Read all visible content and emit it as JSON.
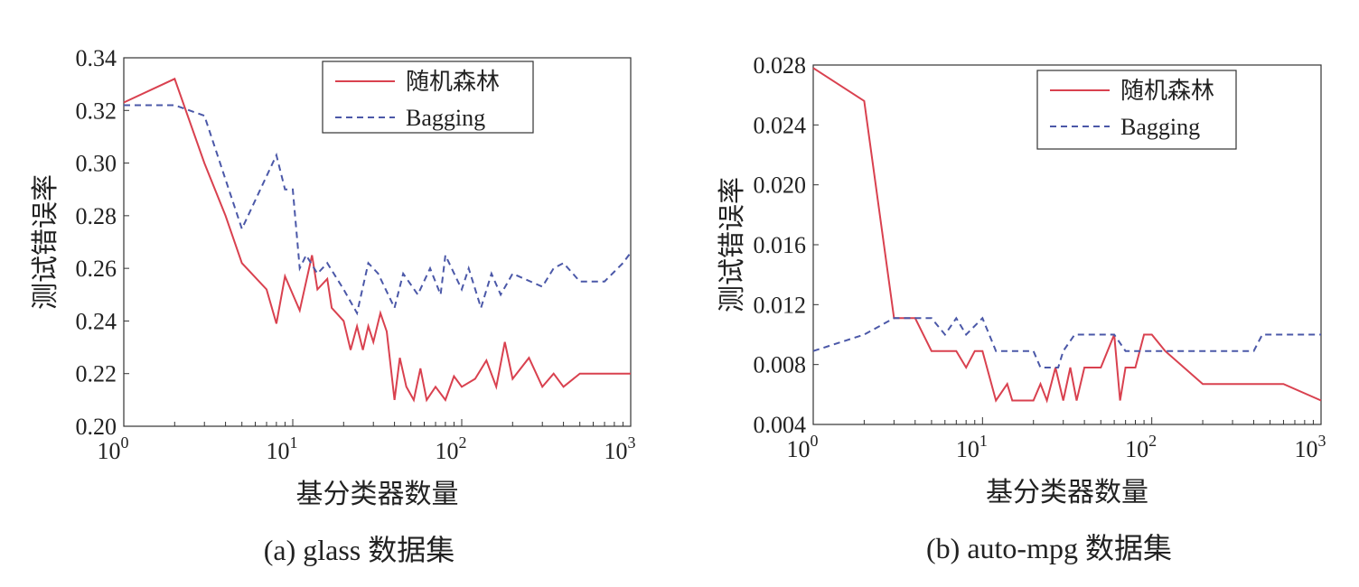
{
  "chart_data": [
    {
      "type": "line",
      "title": "",
      "caption": "(a) glass 数据集",
      "xlabel": "基分类器数量",
      "ylabel": "测试错误率",
      "xscale": "log",
      "xlim": [
        1,
        1000
      ],
      "ylim": [
        0.2,
        0.34
      ],
      "xticks": [
        "10",
        "10",
        "10",
        "10"
      ],
      "xtick_exp": [
        "0",
        "1",
        "2",
        "3"
      ],
      "yticks": [
        "0.20",
        "0.22",
        "0.24",
        "0.26",
        "0.28",
        "0.30",
        "0.32",
        "0.34"
      ],
      "legend_position": "top-right",
      "series": [
        {
          "name": "随机森林",
          "color": "#d9414f",
          "style": "solid",
          "points": [
            [
              1,
              0.323
            ],
            [
              2,
              0.332
            ],
            [
              3,
              0.3
            ],
            [
              4,
              0.28
            ],
            [
              5,
              0.262
            ],
            [
              7,
              0.252
            ],
            [
              8,
              0.239
            ],
            [
              9,
              0.257
            ],
            [
              11,
              0.244
            ],
            [
              13,
              0.265
            ],
            [
              14,
              0.252
            ],
            [
              16,
              0.256
            ],
            [
              17,
              0.245
            ],
            [
              20,
              0.24
            ],
            [
              22,
              0.229
            ],
            [
              24,
              0.238
            ],
            [
              26,
              0.229
            ],
            [
              28,
              0.238
            ],
            [
              30,
              0.232
            ],
            [
              33,
              0.243
            ],
            [
              36,
              0.236
            ],
            [
              40,
              0.21
            ],
            [
              43,
              0.226
            ],
            [
              47,
              0.215
            ],
            [
              52,
              0.21
            ],
            [
              57,
              0.222
            ],
            [
              62,
              0.21
            ],
            [
              70,
              0.215
            ],
            [
              80,
              0.21
            ],
            [
              90,
              0.219
            ],
            [
              100,
              0.215
            ],
            [
              120,
              0.218
            ],
            [
              140,
              0.225
            ],
            [
              160,
              0.215
            ],
            [
              180,
              0.232
            ],
            [
              200,
              0.218
            ],
            [
              250,
              0.226
            ],
            [
              300,
              0.215
            ],
            [
              350,
              0.22
            ],
            [
              400,
              0.215
            ],
            [
              500,
              0.22
            ],
            [
              600,
              0.22
            ],
            [
              1000,
              0.22
            ]
          ]
        },
        {
          "name": "Bagging",
          "color": "#4b58a8",
          "style": "dashed",
          "points": [
            [
              1,
              0.322
            ],
            [
              2,
              0.322
            ],
            [
              3,
              0.318
            ],
            [
              5,
              0.275
            ],
            [
              8,
              0.303
            ],
            [
              9,
              0.29
            ],
            [
              10,
              0.29
            ],
            [
              11,
              0.26
            ],
            [
              12,
              0.265
            ],
            [
              14,
              0.258
            ],
            [
              16,
              0.262
            ],
            [
              20,
              0.252
            ],
            [
              24,
              0.243
            ],
            [
              28,
              0.262
            ],
            [
              32,
              0.258
            ],
            [
              40,
              0.245
            ],
            [
              45,
              0.258
            ],
            [
              55,
              0.25
            ],
            [
              65,
              0.26
            ],
            [
              75,
              0.25
            ],
            [
              80,
              0.265
            ],
            [
              100,
              0.252
            ],
            [
              110,
              0.26
            ],
            [
              130,
              0.245
            ],
            [
              150,
              0.258
            ],
            [
              170,
              0.25
            ],
            [
              200,
              0.258
            ],
            [
              300,
              0.253
            ],
            [
              350,
              0.26
            ],
            [
              400,
              0.262
            ],
            [
              500,
              0.255
            ],
            [
              700,
              0.255
            ],
            [
              900,
              0.262
            ],
            [
              1000,
              0.266
            ]
          ]
        }
      ]
    },
    {
      "type": "line",
      "title": "",
      "caption": "(b) auto-mpg 数据集",
      "xlabel": "基分类器数量",
      "ylabel": "测试错误率",
      "xscale": "log",
      "xlim": [
        1,
        1000
      ],
      "ylim": [
        0.004,
        0.028
      ],
      "xticks": [
        "10",
        "10",
        "10",
        "10"
      ],
      "xtick_exp": [
        "0",
        "1",
        "2",
        "3"
      ],
      "yticks": [
        "0.004",
        "0.008",
        "0.012",
        "0.016",
        "0.020",
        "0.024",
        "0.028"
      ],
      "legend_position": "top-right",
      "series": [
        {
          "name": "随机森林",
          "color": "#d9414f",
          "style": "solid",
          "points": [
            [
              1,
              0.0278
            ],
            [
              2,
              0.0256
            ],
            [
              3,
              0.0111
            ],
            [
              4,
              0.0111
            ],
            [
              5,
              0.0089
            ],
            [
              7,
              0.0089
            ],
            [
              8,
              0.0078
            ],
            [
              9,
              0.0089
            ],
            [
              10,
              0.0089
            ],
            [
              12,
              0.0056
            ],
            [
              14,
              0.0067
            ],
            [
              15,
              0.0056
            ],
            [
              20,
              0.0056
            ],
            [
              22,
              0.0067
            ],
            [
              24,
              0.0056
            ],
            [
              27,
              0.0078
            ],
            [
              30,
              0.0056
            ],
            [
              33,
              0.0078
            ],
            [
              36,
              0.0056
            ],
            [
              40,
              0.0078
            ],
            [
              50,
              0.0078
            ],
            [
              60,
              0.01
            ],
            [
              65,
              0.0056
            ],
            [
              70,
              0.0078
            ],
            [
              80,
              0.0078
            ],
            [
              90,
              0.01
            ],
            [
              100,
              0.01
            ],
            [
              120,
              0.0089
            ],
            [
              200,
              0.0067
            ],
            [
              600,
              0.0067
            ],
            [
              1000,
              0.0056
            ]
          ]
        },
        {
          "name": "Bagging",
          "color": "#4b58a8",
          "style": "dashed",
          "points": [
            [
              1,
              0.0089
            ],
            [
              2,
              0.01
            ],
            [
              3,
              0.0111
            ],
            [
              5,
              0.0111
            ],
            [
              6,
              0.01
            ],
            [
              7,
              0.0111
            ],
            [
              8,
              0.01
            ],
            [
              10,
              0.0111
            ],
            [
              12,
              0.0089
            ],
            [
              20,
              0.0089
            ],
            [
              22,
              0.0078
            ],
            [
              28,
              0.0078
            ],
            [
              30,
              0.0089
            ],
            [
              35,
              0.01
            ],
            [
              60,
              0.01
            ],
            [
              70,
              0.0089
            ],
            [
              400,
              0.0089
            ],
            [
              450,
              0.01
            ],
            [
              1000,
              0.01
            ]
          ]
        }
      ]
    }
  ]
}
